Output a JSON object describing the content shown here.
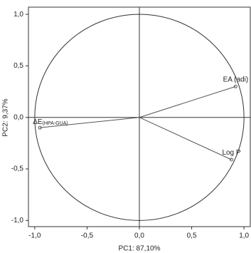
{
  "chart_data": {
    "type": "loading",
    "xlabel": "PC1: 87,10%",
    "ylabel": "PC2: 9,37%",
    "x": [
      0.92,
      0.88,
      -0.95
    ],
    "values": [
      0.3,
      -0.41,
      -0.1
    ],
    "labels": [
      "EA (adi)",
      "Log P",
      "ΔE"
    ],
    "label_subscripts": [
      null,
      null,
      "(HPA-GUA)"
    ],
    "color": "#555555",
    "xlim": [
      -1.06,
      1.06
    ],
    "ylim": [
      -1.06,
      1.07
    ],
    "xticks": [
      {
        "value": -1,
        "label": "-1,0"
      },
      {
        "value": -0.5,
        "label": "-0,5"
      },
      {
        "value": 0,
        "label": "0,0"
      },
      {
        "value": 0.5,
        "label": "0,5"
      },
      {
        "value": 1,
        "label": "1,0"
      }
    ],
    "yticks": [
      {
        "value": -1,
        "label": "-1,0"
      },
      {
        "value": -0.5,
        "label": "-0,5"
      },
      {
        "value": 0,
        "label": "0,0"
      },
      {
        "value": 0.5,
        "label": "0,5"
      },
      {
        "value": 1,
        "label": "1,0"
      }
    ]
  }
}
